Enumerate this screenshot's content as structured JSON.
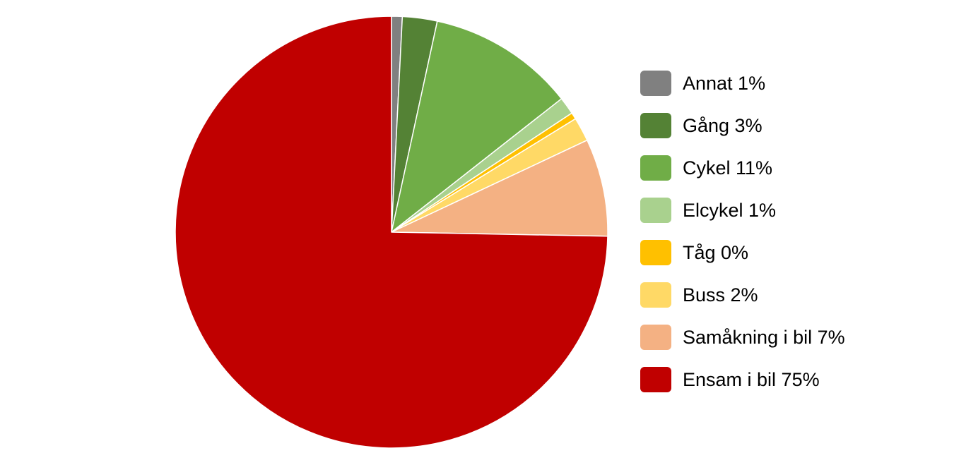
{
  "chart_data": {
    "type": "pie",
    "title": "",
    "start_angle_deg": 0,
    "direction": "clockwise",
    "legend_position": "right",
    "slices": [
      {
        "label": "Annat 1%",
        "name": "Annat",
        "value": 0.8,
        "color": "#808080"
      },
      {
        "label": "Gång 3%",
        "name": "Gång",
        "value": 2.6,
        "color": "#548235"
      },
      {
        "label": "Cykel 11%",
        "name": "Cykel",
        "value": 11.0,
        "color": "#70AD47"
      },
      {
        "label": "Elcykel 1%",
        "name": "Elcykel",
        "value": 1.3,
        "color": "#A9D18E"
      },
      {
        "label": "Tåg 0%",
        "name": "Tåg",
        "value": 0.5,
        "color": "#FFC000"
      },
      {
        "label": "Buss 2%",
        "name": "Buss",
        "value": 1.8,
        "color": "#FFD966"
      },
      {
        "label": "Samåkning i bil 7%",
        "name": "Samåkning i bil",
        "value": 7.3,
        "color": "#F4B183"
      },
      {
        "label": "Ensam i bil 75%",
        "name": "Ensam i bil",
        "value": 74.7,
        "color": "#C00000"
      }
    ]
  }
}
